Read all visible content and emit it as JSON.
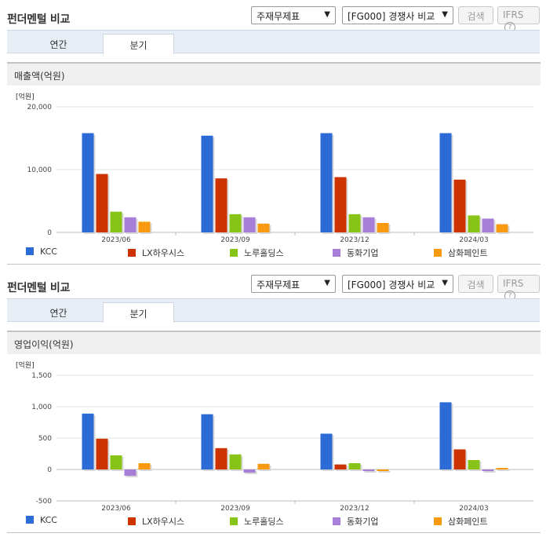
{
  "header": {
    "title": "펀더멘털 비교",
    "select1": "주재무제표",
    "select2": "[FG000] 경쟁사 비교",
    "search_label": "검색",
    "ifrs_label": "IFRS",
    "help_icon": "?"
  },
  "tabs": [
    "연간",
    "분기"
  ],
  "active_tab": 1,
  "legend": [
    {
      "name": "KCC",
      "color": "#2b6bd6"
    },
    {
      "name": "LX하우시스",
      "color": "#cc3300"
    },
    {
      "name": "노루홀딩스",
      "color": "#88c417"
    },
    {
      "name": "동화기업",
      "color": "#a77fd8"
    },
    {
      "name": "삼화페인트",
      "color": "#f79a10"
    }
  ],
  "chart_data": [
    {
      "type": "bar",
      "title": "매출액(억원)",
      "unit": "[억원]",
      "categories": [
        "2023/06",
        "2023/09",
        "2023/12",
        "2024/03"
      ],
      "ylim": [
        0,
        20000
      ],
      "yticks": [
        "0",
        "10,000",
        "20,000"
      ],
      "yticks_values": [
        0,
        10000,
        20000
      ],
      "grid": true,
      "legend_position": "bottom",
      "series": [
        {
          "name": "KCC",
          "values": [
            15800,
            15400,
            15800,
            15800
          ]
        },
        {
          "name": "LX하우시스",
          "values": [
            9300,
            8600,
            8800,
            8400
          ]
        },
        {
          "name": "노루홀딩스",
          "values": [
            3300,
            2900,
            2900,
            2700
          ]
        },
        {
          "name": "동화기업",
          "values": [
            2400,
            2400,
            2400,
            2200
          ]
        },
        {
          "name": "삼화페인트",
          "values": [
            1700,
            1400,
            1500,
            1300
          ]
        }
      ]
    },
    {
      "type": "bar",
      "title": "영업이익(억원)",
      "unit": "[억원]",
      "categories": [
        "2023/06",
        "2023/09",
        "2023/12",
        "2024/03"
      ],
      "ylim": [
        -500,
        1500
      ],
      "yticks": [
        "-500",
        "0",
        "500",
        "1,000",
        "1,500"
      ],
      "yticks_values": [
        -500,
        0,
        500,
        1000,
        1500
      ],
      "grid": true,
      "legend_position": "bottom",
      "series": [
        {
          "name": "KCC",
          "values": [
            890,
            880,
            570,
            1070
          ]
        },
        {
          "name": "LX하우시스",
          "values": [
            490,
            340,
            80,
            320
          ]
        },
        {
          "name": "노루홀딩스",
          "values": [
            225,
            240,
            100,
            150
          ]
        },
        {
          "name": "동화기업",
          "values": [
            -100,
            -50,
            -25,
            -25
          ]
        },
        {
          "name": "삼화페인트",
          "values": [
            100,
            90,
            -25,
            25
          ]
        }
      ]
    }
  ]
}
